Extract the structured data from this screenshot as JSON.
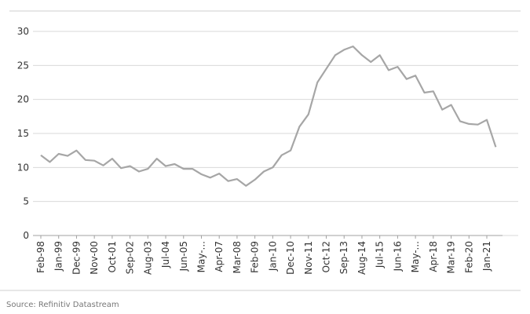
{
  "chart_data": {
    "type": "line",
    "categories": [
      "Feb-98",
      null,
      "Jan-99",
      null,
      "Dec-99",
      null,
      "Nov-00",
      null,
      "Oct-01",
      null,
      "Sep-02",
      null,
      "Aug-03",
      null,
      "Jul-04",
      null,
      "Jun-05",
      null,
      "May-...",
      null,
      "Apr-07",
      null,
      "Mar-08",
      null,
      "Feb-09",
      null,
      "Jan-10",
      null,
      "Dec-10",
      null,
      "Nov-11",
      null,
      "Oct-12",
      null,
      "Sep-13",
      null,
      "Aug-14",
      null,
      "Jul-15",
      null,
      "Jun-16",
      null,
      "May-...",
      null,
      "Apr-18",
      null,
      "Mar-19",
      null,
      "Feb-20",
      null,
      "Jan-21",
      null
    ],
    "values": [
      11.8,
      10.8,
      12.0,
      11.7,
      12.5,
      11.1,
      11.0,
      10.3,
      11.3,
      9.9,
      10.2,
      9.4,
      9.8,
      11.3,
      10.2,
      10.5,
      9.8,
      9.8,
      9.0,
      8.5,
      9.1,
      8.0,
      8.3,
      7.3,
      8.2,
      9.4,
      10.0,
      11.8,
      12.5,
      16.0,
      17.8,
      22.5,
      24.5,
      26.5,
      27.3,
      27.8,
      26.5,
      25.5,
      26.5,
      24.3,
      24.8,
      23.0,
      23.5,
      21.0,
      21.2,
      18.5,
      19.2,
      16.8,
      16.4,
      16.3,
      17.0,
      13.0
    ],
    "color": "#a6a6a6",
    "ylim": [
      0,
      30
    ],
    "yticks": [
      0,
      5,
      10,
      15,
      20,
      25,
      30
    ],
    "grid": true,
    "source": "Source: Refinitiv Datastream"
  }
}
